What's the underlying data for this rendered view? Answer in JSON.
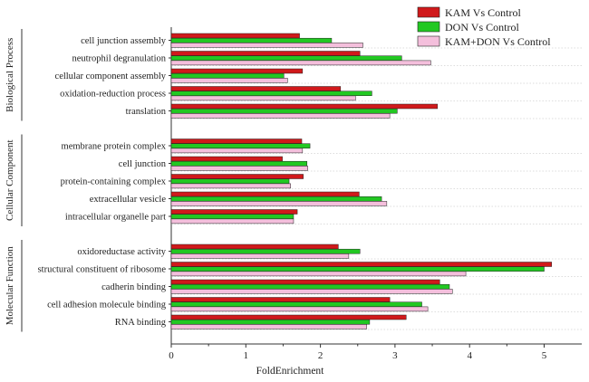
{
  "chart_data": {
    "type": "bar",
    "orientation": "horizontal",
    "xlabel": "FoldEnrichment",
    "xlim": [
      0,
      5.3
    ],
    "xticks": [
      "0",
      "1",
      "2",
      "3",
      "4",
      "5"
    ],
    "legend_position": "top-right",
    "series": [
      {
        "name": "KAM Vs Control",
        "color": "#d0191b"
      },
      {
        "name": "DON Vs Control",
        "color": "#22c822"
      },
      {
        "name": "KAM+DON Vs Control",
        "color": "#f4bfdc"
      }
    ],
    "groups": [
      {
        "name": "Biological Process",
        "categories": [
          {
            "label": "cell junction assembly",
            "values": [
              1.72,
              2.15,
              2.57
            ]
          },
          {
            "label": "neutrophil degranulation",
            "values": [
              2.53,
              3.09,
              3.48
            ]
          },
          {
            "label": "cellular component assembly",
            "values": [
              1.76,
              1.51,
              1.56
            ]
          },
          {
            "label": "oxidation-reduction process",
            "values": [
              2.27,
              2.69,
              2.47
            ]
          },
          {
            "label": "translation",
            "values": [
              3.57,
              3.03,
              2.93
            ]
          }
        ]
      },
      {
        "name": "Cellular Component",
        "categories": [
          {
            "label": "membrane protein complex",
            "values": [
              1.75,
              1.86,
              1.76
            ]
          },
          {
            "label": "cell junction",
            "values": [
              1.49,
              1.82,
              1.83
            ]
          },
          {
            "label": "protein-containing complex",
            "values": [
              1.77,
              1.58,
              1.6
            ]
          },
          {
            "label": "extracellular vesicle",
            "values": [
              2.52,
              2.82,
              2.89
            ]
          },
          {
            "label": "intracellular organelle part",
            "values": [
              1.69,
              1.64,
              1.64
            ]
          }
        ]
      },
      {
        "name": "Molecular Function",
        "categories": [
          {
            "label": "oxidoreductase activity",
            "values": [
              2.24,
              2.53,
              2.38
            ]
          },
          {
            "label": "structural constituent of ribosome",
            "values": [
              5.1,
              5.0,
              3.95
            ]
          },
          {
            "label": "cadherin binding",
            "values": [
              3.6,
              3.73,
              3.77
            ]
          },
          {
            "label": "cell adhesion molecule binding",
            "values": [
              2.93,
              3.36,
              3.44
            ]
          },
          {
            "label": "RNA binding",
            "values": [
              3.15,
              2.66,
              2.62
            ]
          }
        ]
      }
    ]
  }
}
